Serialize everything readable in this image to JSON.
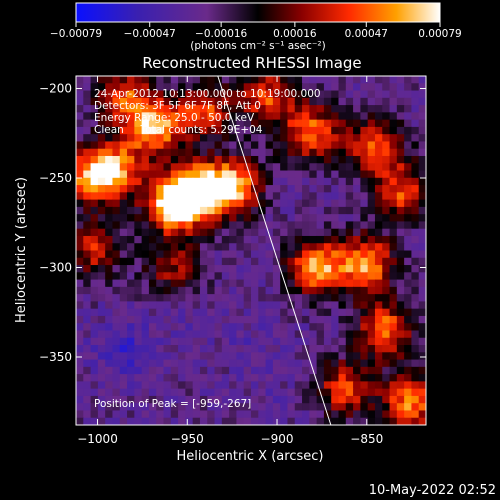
{
  "chart_data": {
    "type": "heatmap",
    "title": "Reconstructed RHESSI Image",
    "xlabel": "Heliocentric X (arcsec)",
    "ylabel": "Heliocentric Y (arcsec)",
    "xlim": [
      -1012,
      -817
    ],
    "ylim": [
      -388,
      -193
    ],
    "xticks": [
      -1000,
      -950,
      -900,
      -850
    ],
    "yticks": [
      -200,
      -250,
      -300,
      -350
    ],
    "xtick_labels": [
      "−1000",
      "−950",
      "−900",
      "−850"
    ],
    "ytick_labels": [
      "−200",
      "−250",
      "−300",
      "−350"
    ],
    "colorbar": {
      "range": [
        -0.00079,
        0.00079
      ],
      "tick_values": [
        -0.00079,
        -0.00047,
        -0.00016,
        0.00016,
        0.00047,
        0.00079
      ],
      "tick_labels": [
        "−0.00079",
        "−0.00047",
        "−0.00016",
        "0.00016",
        "0.00047",
        "0.00079"
      ],
      "unit_label": "(photons cm⁻² s⁻¹ asec⁻²)",
      "colors": [
        "#0a10ff",
        "#3a20b0",
        "#6a2a8a",
        "#000000",
        "#8a0000",
        "#ff2a00",
        "#ffa000",
        "#ffffff"
      ]
    },
    "annotations": [
      "24-Apr-2012 10:13:00.000 to 10:19:00.000",
      "Detectors: 3F 5F 6F 7F 8F, Att 0",
      "Energy Range: 25.0 - 50.0 keV",
      "Clean     Total counts: 5.29E+04"
    ],
    "peak_label": "Position of Peak = [-959,-267]",
    "peak": [
      -959,
      -267
    ],
    "limb_line": [
      [
        -933,
        -193
      ],
      [
        -870,
        -388
      ]
    ],
    "bright_sources": [
      {
        "x": -958,
        "y": -265,
        "intensity": 0.00079
      },
      {
        "x": -945,
        "y": -258,
        "intensity": 0.0007
      },
      {
        "x": -968,
        "y": -222,
        "intensity": 0.00062
      },
      {
        "x": -990,
        "y": -245,
        "intensity": 0.00052
      },
      {
        "x": -1005,
        "y": -250,
        "intensity": 0.00045
      },
      {
        "x": -925,
        "y": -255,
        "intensity": 0.0007
      },
      {
        "x": -940,
        "y": -212,
        "intensity": 0.0004
      },
      {
        "x": -905,
        "y": -205,
        "intensity": 0.0004
      },
      {
        "x": -880,
        "y": -225,
        "intensity": 0.00048
      },
      {
        "x": -845,
        "y": -232,
        "intensity": 0.00045
      },
      {
        "x": -830,
        "y": -258,
        "intensity": 0.0004
      },
      {
        "x": -878,
        "y": -300,
        "intensity": 0.00065
      },
      {
        "x": -850,
        "y": -298,
        "intensity": 0.0006
      },
      {
        "x": -840,
        "y": -335,
        "intensity": 0.0005
      },
      {
        "x": -825,
        "y": -375,
        "intensity": 0.00055
      },
      {
        "x": -862,
        "y": -368,
        "intensity": 0.0004
      },
      {
        "x": -1002,
        "y": -290,
        "intensity": 0.0003
      },
      {
        "x": -985,
        "y": -205,
        "intensity": 0.00038
      },
      {
        "x": -958,
        "y": -300,
        "intensity": 0.0002
      }
    ],
    "negative_sources": [
      {
        "x": -985,
        "y": -345,
        "intensity": -0.0005
      },
      {
        "x": -950,
        "y": -330,
        "intensity": -0.00035
      },
      {
        "x": -915,
        "y": -345,
        "intensity": -0.00035
      },
      {
        "x": -900,
        "y": -375,
        "intensity": -0.0003
      },
      {
        "x": -900,
        "y": -232,
        "intensity": -0.00022
      },
      {
        "x": -935,
        "y": -302,
        "intensity": -0.00025
      },
      {
        "x": -1008,
        "y": -378,
        "intensity": -0.00025
      }
    ],
    "grid": false
  },
  "footer_timestamp": "10-May-2022 02:52"
}
